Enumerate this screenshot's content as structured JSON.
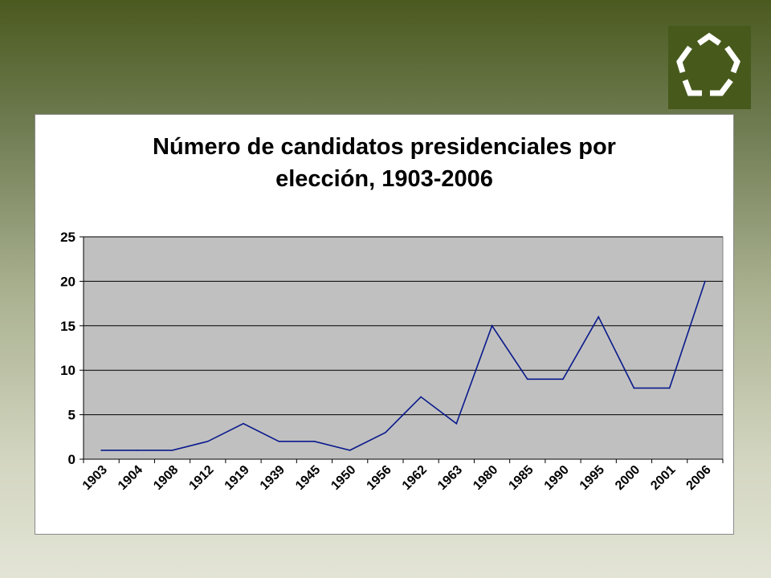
{
  "slide": {
    "background_top": "#4b5a1f",
    "background_bottom": "#e3e4d6",
    "logo_icon": "pentagon-logo-icon",
    "logo_color": "#475a1c"
  },
  "chart_data": {
    "type": "line",
    "title_lines": [
      "Número de candidatos presidenciales por",
      "elección, 1903-2006"
    ],
    "categories": [
      "1903",
      "1904",
      "1908",
      "1912",
      "1919",
      "1939",
      "1945",
      "1950",
      "1956",
      "1962",
      "1963",
      "1980",
      "1985",
      "1990",
      "1995",
      "2000",
      "2001",
      "2006"
    ],
    "series": [
      {
        "values": [
          1,
          1,
          1,
          2,
          4,
          2,
          2,
          1,
          3,
          7,
          4,
          15,
          9,
          9,
          16,
          8,
          8,
          20
        ],
        "color": "#0a1a8c"
      }
    ],
    "ylim": [
      0,
      25
    ],
    "yticks": [
      "0",
      "5",
      "10",
      "15",
      "20",
      "25"
    ],
    "grid": true,
    "plot_background": "#c0c0c0",
    "legend": "none"
  }
}
